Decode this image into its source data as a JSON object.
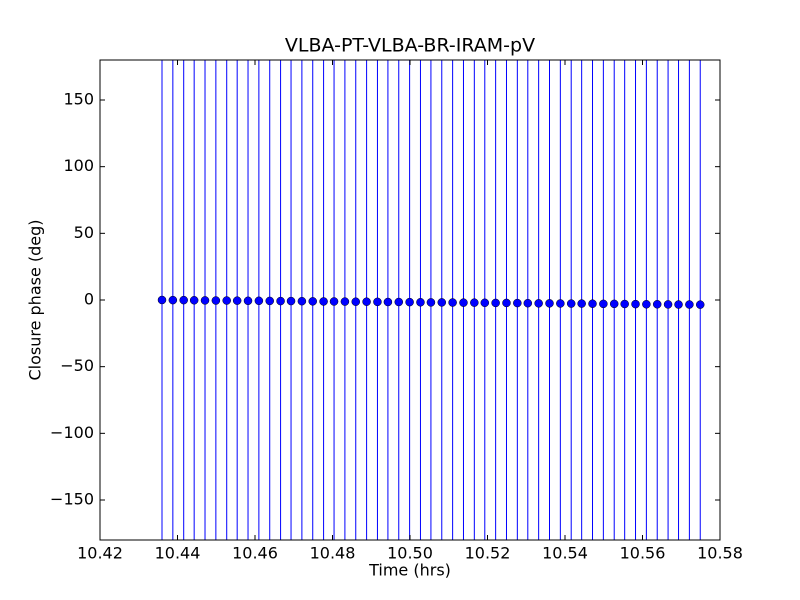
{
  "chart_data": {
    "type": "errorbar",
    "title": "VLBA-PT-VLBA-BR-IRAM-pV",
    "xlabel": "Time (hrs)",
    "ylabel": "Closure phase (deg)",
    "xlim": [
      10.42,
      10.58
    ],
    "xticks": [
      10.42,
      10.44,
      10.46,
      10.48,
      {
        "value": 10.5,
        "label": "10.50"
      },
      10.52,
      10.54,
      10.56,
      10.58
    ],
    "ylim": [
      -180,
      180
    ],
    "yticks": [
      {
        "value": -150,
        "label": "−150"
      },
      {
        "value": -100,
        "label": "−100"
      },
      {
        "value": -50,
        "label": "−50"
      },
      0,
      50,
      100,
      150
    ],
    "series": [
      {
        "color": "#0000ff",
        "x": [
          10.436,
          10.4388,
          10.4416,
          10.4443,
          10.4471,
          10.4499,
          10.4527,
          10.4554,
          10.4582,
          10.461,
          10.4638,
          10.4666,
          10.4693,
          10.4721,
          10.4749,
          10.4777,
          10.4804,
          10.4832,
          10.486,
          10.4888,
          10.4916,
          10.4943,
          10.4971,
          10.4999,
          10.5027,
          10.5054,
          10.5082,
          10.511,
          10.5138,
          10.5166,
          10.5193,
          10.5221,
          10.5249,
          10.5277,
          10.5304,
          10.5332,
          10.536,
          10.5388,
          10.5416,
          10.5443,
          10.5471,
          10.5499,
          10.5527,
          10.5554,
          10.5582,
          10.561,
          10.5638,
          10.5666,
          10.5693,
          10.5721,
          10.5749
        ],
        "values": [
          0,
          -0.1,
          -0.1,
          -0.2,
          -0.3,
          -0.4,
          -0.4,
          -0.5,
          -0.6,
          -0.6,
          -0.7,
          -0.8,
          -0.8,
          -0.9,
          -1.0,
          -1.1,
          -1.1,
          -1.2,
          -1.3,
          -1.3,
          -1.4,
          -1.5,
          -1.5,
          -1.6,
          -1.7,
          -1.8,
          -1.8,
          -1.9,
          -2.0,
          -2.0,
          -2.1,
          -2.2,
          -2.2,
          -2.3,
          -2.4,
          -2.5,
          -2.5,
          -2.6,
          -2.7,
          -2.7,
          -2.8,
          -2.9,
          -2.9,
          -3.0,
          -3.1,
          -3.2,
          -3.2,
          -3.3,
          -3.4,
          -3.4,
          -3.5
        ],
        "yerr": 200
      }
    ]
  }
}
